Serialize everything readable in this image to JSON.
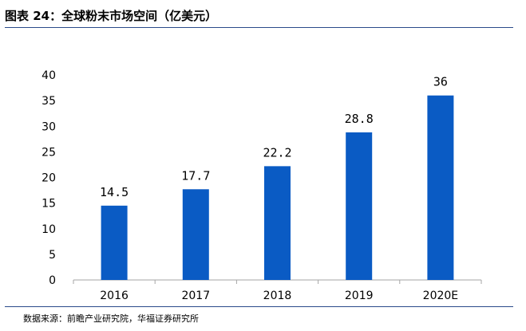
{
  "figure": {
    "title": "图表 24：全球粉末市场空间（亿美元）",
    "source": "数据来源：前瞻产业研究院，华福证券研究所",
    "rule_color": "#2a4a8a"
  },
  "chart_data": {
    "type": "bar",
    "title": "全球粉末市场空间（亿美元）",
    "xlabel": "",
    "ylabel": "",
    "categories": [
      "2016",
      "2017",
      "2018",
      "2019",
      "2020E"
    ],
    "values": [
      14.5,
      17.7,
      22.2,
      28.8,
      36
    ],
    "value_labels": [
      "14.5",
      "17.7",
      "22.2",
      "28.8",
      "36"
    ],
    "ylim": [
      0,
      40
    ],
    "yticks": [
      "0",
      "5",
      "10",
      "15",
      "20",
      "25",
      "30",
      "35",
      "40"
    ],
    "grid": false,
    "legend": "none",
    "bar_color": "#0a5bc4",
    "axis_color": "#a6a6a6"
  }
}
